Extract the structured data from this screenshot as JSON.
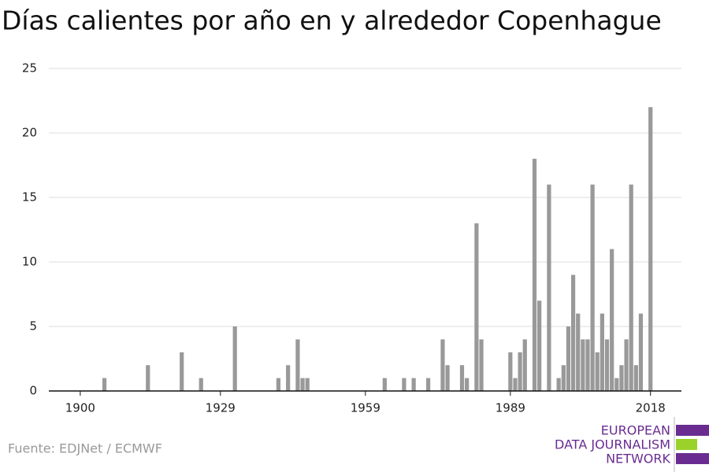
{
  "chart_data": {
    "type": "bar",
    "title": "Días calientes por año en y alrededor Copenhague",
    "source": "Fuente: EDJNet / ECMWF",
    "logo": [
      "EUROPEAN",
      "DATA JOURNALISM",
      "NETWORK"
    ],
    "x": [
      1905,
      1914,
      1921,
      1925,
      1932,
      1941,
      1943,
      1945,
      1946,
      1947,
      1963,
      1967,
      1969,
      1972,
      1975,
      1976,
      1979,
      1980,
      1982,
      1983,
      1989,
      1990,
      1991,
      1992,
      1994,
      1995,
      1997,
      1999,
      2000,
      2001,
      2002,
      2003,
      2004,
      2005,
      2006,
      2007,
      2008,
      2009,
      2010,
      2011,
      2012,
      2013,
      2014,
      2015,
      2016,
      2018
    ],
    "values": [
      1,
      2,
      3,
      1,
      5,
      1,
      2,
      4,
      1,
      1,
      1,
      1,
      1,
      1,
      4,
      2,
      2,
      1,
      13,
      4,
      3,
      1,
      3,
      4,
      18,
      7,
      16,
      1,
      2,
      5,
      9,
      6,
      4,
      4,
      16,
      3,
      6,
      4,
      11,
      1,
      2,
      4,
      16,
      2,
      6,
      22
    ],
    "color": "#999999",
    "xlim": [
      1893.5,
      2024.4
    ],
    "xticks": [
      1900,
      1929,
      1959,
      1989,
      2018
    ],
    "ylim": [
      0,
      25
    ],
    "yticks": [
      0,
      5,
      10,
      15,
      20,
      25
    ],
    "grid": true
  }
}
